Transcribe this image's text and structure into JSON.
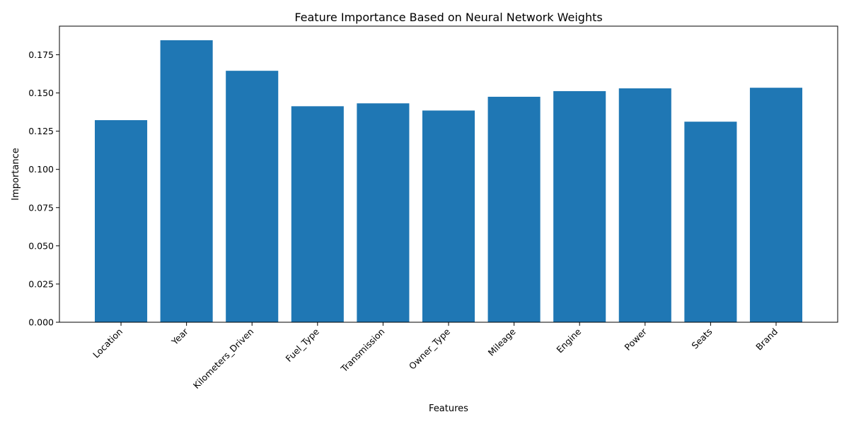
{
  "chart_data": {
    "type": "bar",
    "title": "Feature Importance Based on Neural Network Weights",
    "xlabel": "Features",
    "ylabel": "Importance",
    "categories": [
      "Location",
      "Year",
      "Kilometers_Driven",
      "Fuel_Type",
      "Transmission",
      "Owner_Type",
      "Mileage",
      "Engine",
      "Power",
      "Seats",
      "Brand"
    ],
    "values": [
      0.1322,
      0.1845,
      0.1645,
      0.1413,
      0.1432,
      0.1385,
      0.1475,
      0.1512,
      0.153,
      0.1312,
      0.1534
    ],
    "ylim": [
      0,
      0.1937
    ],
    "yticks": [
      "0.000",
      "0.025",
      "0.050",
      "0.075",
      "0.100",
      "0.125",
      "0.150",
      "0.175"
    ],
    "ytick_values": [
      0,
      0.025,
      0.05,
      0.075,
      0.1,
      0.125,
      0.15,
      0.175
    ],
    "bar_color": "#1f77b4",
    "grid": false,
    "legend": "none"
  }
}
